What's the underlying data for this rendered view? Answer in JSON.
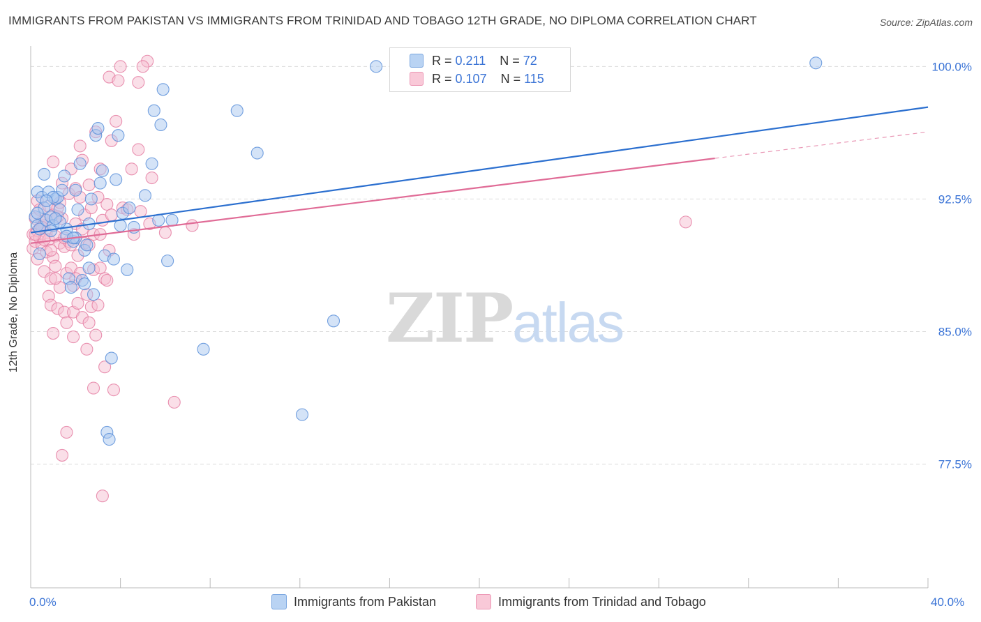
{
  "header": {
    "title": "IMMIGRANTS FROM PAKISTAN VS IMMIGRANTS FROM TRINIDAD AND TOBAGO 12TH GRADE, NO DIPLOMA CORRELATION CHART",
    "source": "Source: ZipAtlas.com"
  },
  "watermark": {
    "zip": "ZIP",
    "atlas": "atlas"
  },
  "legend": {
    "r_label": "R =",
    "n_label": "N =",
    "pakistan": {
      "r": "0.211",
      "n": "72"
    },
    "trinidad": {
      "r": "0.107",
      "n": "115"
    }
  },
  "colors": {
    "blue_fill": "#a9c8f0",
    "blue_stroke": "#5b8fd9",
    "blue_line": "#2b6fcf",
    "pink_fill": "#f6bfd1",
    "pink_stroke": "#e57fa3",
    "pink_line": "#e06b96",
    "axis_label": "#3b74d6",
    "grid": "#dcdcdc"
  },
  "chart_data": {
    "type": "scatter",
    "title": "IMMIGRANTS FROM PAKISTAN VS IMMIGRANTS FROM TRINIDAD AND TOBAGO 12TH GRADE, NO DIPLOMA CORRELATION CHART",
    "xlabel": "",
    "ylabel": "12th Grade, No Diploma",
    "xlim": [
      0,
      40
    ],
    "ylim": [
      70.5,
      101
    ],
    "x_tick_labels": [
      "0.0%",
      "40.0%"
    ],
    "y_ticks": [
      77.5,
      85.0,
      92.5,
      100.0
    ],
    "y_tick_labels": [
      "77.5%",
      "85.0%",
      "92.5%",
      "100.0%"
    ],
    "grid": true,
    "legend_position": "top-center",
    "series": [
      {
        "name": "Immigrants from Pakistan",
        "color": "blue",
        "trend": {
          "x0": 0,
          "y0": 90.6,
          "x1": 40,
          "y1": 97.7,
          "dashed_from": null
        },
        "points": [
          [
            0.2,
            91.5
          ],
          [
            0.3,
            92.9
          ],
          [
            0.3,
            91.0
          ],
          [
            0.4,
            90.8
          ],
          [
            0.4,
            89.4
          ],
          [
            0.5,
            92.6
          ],
          [
            0.6,
            93.9
          ],
          [
            0.6,
            92.0
          ],
          [
            0.7,
            91.3
          ],
          [
            0.8,
            92.9
          ],
          [
            0.9,
            91.5
          ],
          [
            1.0,
            91.0
          ],
          [
            1.1,
            92.5
          ],
          [
            1.2,
            92.6
          ],
          [
            1.3,
            91.9
          ],
          [
            1.4,
            93.0
          ],
          [
            1.5,
            93.8
          ],
          [
            1.6,
            90.8
          ],
          [
            1.7,
            88.0
          ],
          [
            1.8,
            87.5
          ],
          [
            1.9,
            90.1
          ],
          [
            2.0,
            90.3
          ],
          [
            2.2,
            94.5
          ],
          [
            2.3,
            87.9
          ],
          [
            2.4,
            89.6
          ],
          [
            2.5,
            89.9
          ],
          [
            2.6,
            91.1
          ],
          [
            2.7,
            92.5
          ],
          [
            2.8,
            87.1
          ],
          [
            2.9,
            96.1
          ],
          [
            3.0,
            96.5
          ],
          [
            3.1,
            93.4
          ],
          [
            3.2,
            94.1
          ],
          [
            3.4,
            79.3
          ],
          [
            3.5,
            78.9
          ],
          [
            3.6,
            83.5
          ],
          [
            3.8,
            93.6
          ],
          [
            3.9,
            96.1
          ],
          [
            4.0,
            91.0
          ],
          [
            4.1,
            91.7
          ],
          [
            4.3,
            88.5
          ],
          [
            4.4,
            92.0
          ],
          [
            5.1,
            92.7
          ],
          [
            5.4,
            94.5
          ],
          [
            5.5,
            97.5
          ],
          [
            5.7,
            91.3
          ],
          [
            5.8,
            96.7
          ],
          [
            5.9,
            98.7
          ],
          [
            6.1,
            89.0
          ],
          [
            6.3,
            91.3
          ],
          [
            7.7,
            84.0
          ],
          [
            9.2,
            97.5
          ],
          [
            10.1,
            95.1
          ],
          [
            12.1,
            80.3
          ],
          [
            13.5,
            85.6
          ],
          [
            35.0,
            100.2
          ],
          [
            1.0,
            92.6
          ],
          [
            0.3,
            91.7
          ],
          [
            2.4,
            87.7
          ],
          [
            1.6,
            90.4
          ],
          [
            2.0,
            93.0
          ],
          [
            1.3,
            91.2
          ],
          [
            0.9,
            90.7
          ],
          [
            3.3,
            89.3
          ],
          [
            4.6,
            90.9
          ],
          [
            2.1,
            91.9
          ],
          [
            0.7,
            92.4
          ],
          [
            1.9,
            90.3
          ],
          [
            3.7,
            89.1
          ],
          [
            2.6,
            88.6
          ],
          [
            15.4,
            100.0
          ],
          [
            1.1,
            91.4
          ]
        ]
      },
      {
        "name": "Immigrants from Trinidad and Tobago",
        "color": "pink",
        "trend": {
          "x0": 0,
          "y0": 90.0,
          "x1": 40,
          "y1": 96.3,
          "dashed_from": 30.5
        },
        "points": [
          [
            0.1,
            90.5
          ],
          [
            0.1,
            89.7
          ],
          [
            0.2,
            91.4
          ],
          [
            0.2,
            90.1
          ],
          [
            0.3,
            92.4
          ],
          [
            0.3,
            89.1
          ],
          [
            0.3,
            90.7
          ],
          [
            0.4,
            91.9
          ],
          [
            0.4,
            90.3
          ],
          [
            0.5,
            91.2
          ],
          [
            0.5,
            89.9
          ],
          [
            0.6,
            91.0
          ],
          [
            0.6,
            88.4
          ],
          [
            0.7,
            90.6
          ],
          [
            0.7,
            89.5
          ],
          [
            0.8,
            92.1
          ],
          [
            0.8,
            90.2
          ],
          [
            0.8,
            87.0
          ],
          [
            0.9,
            88.0
          ],
          [
            0.9,
            86.5
          ],
          [
            1.0,
            91.6
          ],
          [
            1.0,
            89.2
          ],
          [
            1.0,
            94.6
          ],
          [
            1.1,
            90.4
          ],
          [
            1.1,
            88.7
          ],
          [
            1.2,
            86.3
          ],
          [
            1.2,
            92.0
          ],
          [
            1.3,
            90.0
          ],
          [
            1.3,
            87.5
          ],
          [
            1.4,
            93.4
          ],
          [
            1.4,
            91.4
          ],
          [
            1.5,
            89.8
          ],
          [
            1.5,
            86.1
          ],
          [
            1.6,
            88.3
          ],
          [
            1.6,
            85.5
          ],
          [
            1.7,
            92.8
          ],
          [
            1.7,
            90.1
          ],
          [
            1.8,
            94.2
          ],
          [
            1.8,
            88.6
          ],
          [
            1.9,
            87.6
          ],
          [
            1.9,
            86.1
          ],
          [
            2.0,
            93.1
          ],
          [
            2.0,
            91.1
          ],
          [
            2.1,
            89.3
          ],
          [
            2.1,
            86.6
          ],
          [
            2.2,
            92.6
          ],
          [
            2.2,
            88.3
          ],
          [
            2.3,
            85.8
          ],
          [
            2.3,
            94.7
          ],
          [
            2.4,
            90.0
          ],
          [
            2.4,
            91.6
          ],
          [
            2.5,
            87.1
          ],
          [
            2.6,
            93.3
          ],
          [
            2.6,
            89.9
          ],
          [
            2.7,
            86.4
          ],
          [
            2.7,
            92.0
          ],
          [
            2.8,
            90.5
          ],
          [
            2.8,
            88.5
          ],
          [
            2.9,
            84.8
          ],
          [
            2.9,
            96.3
          ],
          [
            3.0,
            92.6
          ],
          [
            3.0,
            86.5
          ],
          [
            3.1,
            94.2
          ],
          [
            3.1,
            90.5
          ],
          [
            3.2,
            91.3
          ],
          [
            3.3,
            88.0
          ],
          [
            3.3,
            83.0
          ],
          [
            3.4,
            92.2
          ],
          [
            3.5,
            89.6
          ],
          [
            3.5,
            99.4
          ],
          [
            3.6,
            95.8
          ],
          [
            3.6,
            91.6
          ],
          [
            3.8,
            96.9
          ],
          [
            4.1,
            92.0
          ],
          [
            4.3,
            91.9
          ],
          [
            4.5,
            94.2
          ],
          [
            4.6,
            90.5
          ],
          [
            4.8,
            95.3
          ],
          [
            4.9,
            91.8
          ],
          [
            5.2,
            100.3
          ],
          [
            5.3,
            91.1
          ],
          [
            5.4,
            93.7
          ],
          [
            6.0,
            90.6
          ],
          [
            6.4,
            81.0
          ],
          [
            7.2,
            91.0
          ],
          [
            1.0,
            84.9
          ],
          [
            1.6,
            79.3
          ],
          [
            1.4,
            78.0
          ],
          [
            1.9,
            84.7
          ],
          [
            2.5,
            84.0
          ],
          [
            2.8,
            81.8
          ],
          [
            3.2,
            75.7
          ],
          [
            3.7,
            81.7
          ],
          [
            4.0,
            100.0
          ],
          [
            4.8,
            99.1
          ],
          [
            5.0,
            100.0
          ],
          [
            29.2,
            91.2
          ],
          [
            0.4,
            90.8
          ],
          [
            0.6,
            90.2
          ],
          [
            0.2,
            90.5
          ],
          [
            0.9,
            89.6
          ],
          [
            1.2,
            91.5
          ],
          [
            1.5,
            90.3
          ],
          [
            2.0,
            88.0
          ],
          [
            1.8,
            89.9
          ],
          [
            2.3,
            90.8
          ],
          [
            3.1,
            88.6
          ],
          [
            3.4,
            87.9
          ],
          [
            2.6,
            85.5
          ],
          [
            1.1,
            88.0
          ],
          [
            0.7,
            91.3
          ],
          [
            0.5,
            90.9
          ],
          [
            1.3,
            92.3
          ],
          [
            2.2,
            95.5
          ],
          [
            3.9,
            99.2
          ]
        ]
      }
    ]
  },
  "bottom_legend": {
    "pakistan": "Immigrants from Pakistan",
    "trinidad": "Immigrants from Trinidad and Tobago"
  }
}
